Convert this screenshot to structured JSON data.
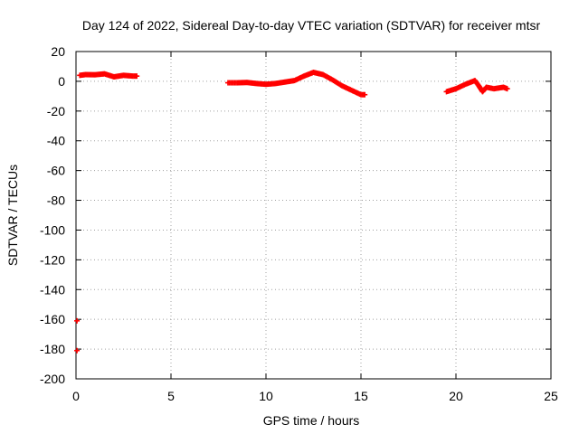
{
  "chart_data": {
    "type": "scatter",
    "title": "Day 124 of 2022, Sidereal Day-to-day VTEC variation (SDTVAR) for receiver mtsr",
    "xlabel": "GPS time / hours",
    "ylabel": "SDTVAR / TECUs",
    "xlim": [
      0,
      25
    ],
    "ylim": [
      -200,
      20
    ],
    "xticks": [
      0,
      5,
      10,
      15,
      20,
      25
    ],
    "yticks": [
      20,
      0,
      -20,
      -40,
      -60,
      -80,
      -100,
      -120,
      -140,
      -160,
      -180,
      -200
    ],
    "grid": true,
    "marker_color": "#ff0000",
    "series": [
      {
        "name": "SDTVAR",
        "segments": [
          [
            [
              0.2,
              4.0
            ],
            [
              0.5,
              4.5
            ],
            [
              1.0,
              4.4
            ],
            [
              1.5,
              5.0
            ],
            [
              2.0,
              3.0
            ],
            [
              2.5,
              4.0
            ],
            [
              3.0,
              3.5
            ],
            [
              3.2,
              3.5
            ]
          ],
          [
            [
              8.0,
              -1.0
            ],
            [
              8.5,
              -1.0
            ],
            [
              9.0,
              -0.8
            ],
            [
              9.5,
              -1.5
            ],
            [
              10.0,
              -2.0
            ],
            [
              10.5,
              -1.5
            ],
            [
              11.0,
              -0.5
            ],
            [
              11.5,
              0.5
            ],
            [
              12.0,
              3.5
            ],
            [
              12.5,
              6.0
            ],
            [
              13.0,
              4.5
            ],
            [
              13.5,
              1.0
            ],
            [
              14.0,
              -3.0
            ],
            [
              14.5,
              -6.0
            ],
            [
              15.0,
              -9.0
            ],
            [
              15.2,
              -9.0
            ]
          ],
          [
            [
              19.5,
              -7.0
            ],
            [
              20.0,
              -5.0
            ],
            [
              20.5,
              -2.0
            ],
            [
              21.0,
              0.5
            ],
            [
              21.2,
              -3.0
            ],
            [
              21.4,
              -7.0
            ],
            [
              21.6,
              -4.0
            ],
            [
              22.0,
              -5.0
            ],
            [
              22.5,
              -4.0
            ],
            [
              22.7,
              -5.0
            ]
          ]
        ],
        "isolated": [
          [
            0.05,
            -161.0
          ],
          [
            0.05,
            -181.0
          ]
        ]
      }
    ]
  }
}
